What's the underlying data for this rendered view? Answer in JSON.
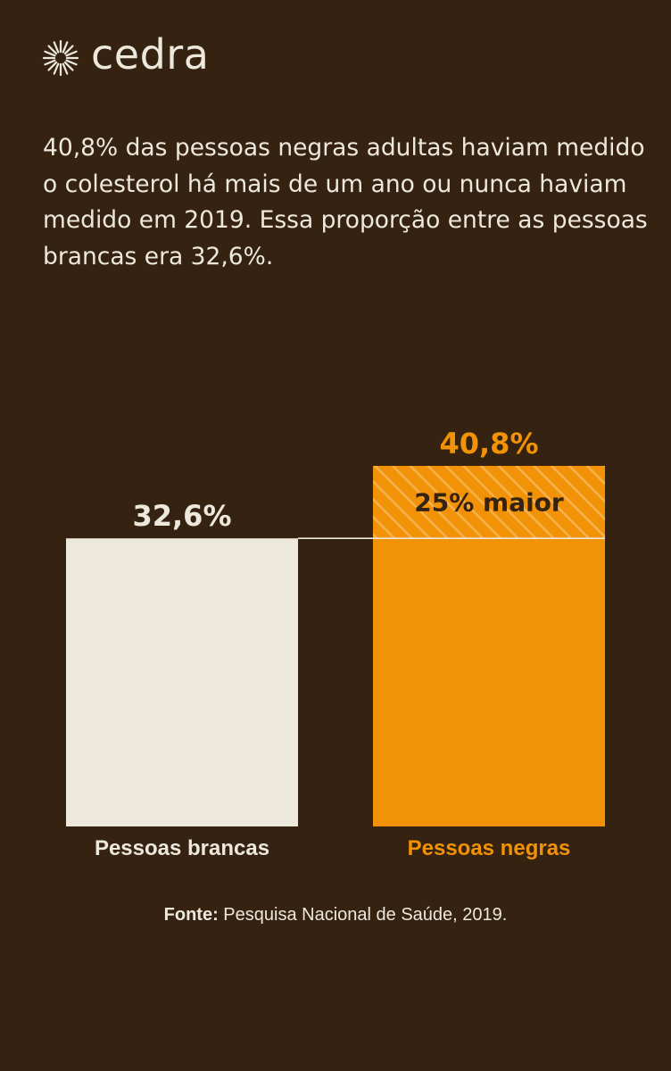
{
  "brand": {
    "name": "cedra"
  },
  "headline": "40,8% das pessoas negras adultas haviam medido o colesterol há mais de um ano ou nunca haviam medido em 2019. Essa proporção entre as pessoas brancas era 32,6%.",
  "colors": {
    "background": "#352211",
    "light": "#EDE8DC",
    "orange": "#F29206",
    "dark_text": "#352211"
  },
  "chart_data": {
    "type": "bar",
    "categories": [
      "Pessoas brancas",
      "Pessoas negras"
    ],
    "values": [
      32.6,
      40.8
    ],
    "value_labels": [
      "32,6%",
      "40,8%"
    ],
    "bar_colors": [
      "#EDE8DC",
      "#F29206"
    ],
    "label_colors": [
      "#EDE8DC",
      "#F29206"
    ],
    "ylim": [
      0,
      40.8
    ],
    "grid": false,
    "annotation": {
      "text": "25% maior",
      "from": 32.6,
      "to": 40.8
    }
  },
  "source": {
    "label": "Fonte:",
    "text": " Pesquisa Nacional de Saúde, 2019."
  }
}
